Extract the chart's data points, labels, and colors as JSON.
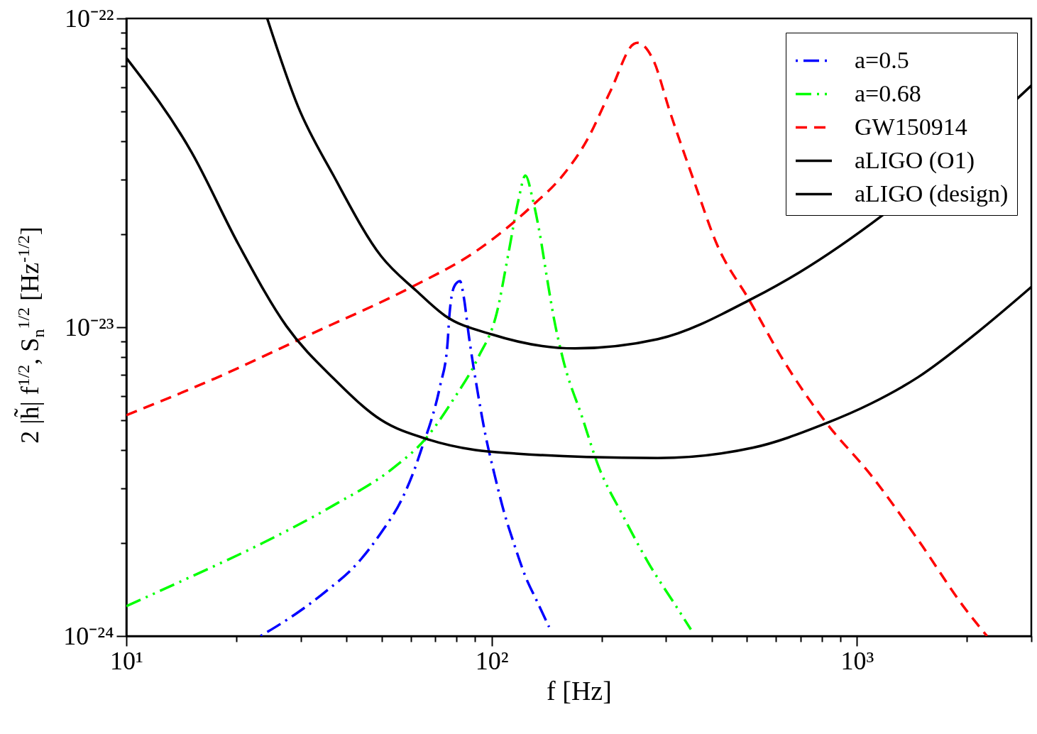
{
  "chart_data": {
    "type": "line",
    "xlabel": "f [Hz]",
    "ylabel": "2 |h̃| f$^{1/2}$, S$_{n}$$^{1/2}$ [Hz$^{-1/2}$]",
    "log": "xy",
    "grid": false,
    "legend": "top right",
    "xlim": [
      10,
      3000
    ],
    "ylim": [
      1e-24,
      1e-22
    ],
    "xticks": [
      {
        "value": 10,
        "label": "10¹"
      },
      {
        "value": 20,
        "label": null
      },
      {
        "value": 30,
        "label": null
      },
      {
        "value": 40,
        "label": null
      },
      {
        "value": 50,
        "label": null
      },
      {
        "value": 60,
        "label": null
      },
      {
        "value": 70,
        "label": null
      },
      {
        "value": 80,
        "label": null
      },
      {
        "value": 90,
        "label": null
      },
      {
        "value": 100,
        "label": "10²"
      },
      {
        "value": 200,
        "label": null
      },
      {
        "value": 300,
        "label": null
      },
      {
        "value": 400,
        "label": null
      },
      {
        "value": 500,
        "label": null
      },
      {
        "value": 600,
        "label": null
      },
      {
        "value": 700,
        "label": null
      },
      {
        "value": 800,
        "label": null
      },
      {
        "value": 900,
        "label": null
      },
      {
        "value": 1000,
        "label": "10³"
      },
      {
        "value": 2000,
        "label": null
      },
      {
        "value": 3000,
        "label": null
      }
    ],
    "yticks": [
      {
        "value": 1e-24,
        "label": "10⁻²⁴"
      },
      {
        "value": 2e-24,
        "label": null
      },
      {
        "value": 3e-24,
        "label": null
      },
      {
        "value": 4e-24,
        "label": null
      },
      {
        "value": 5e-24,
        "label": null
      },
      {
        "value": 6e-24,
        "label": null
      },
      {
        "value": 7e-24,
        "label": null
      },
      {
        "value": 8e-24,
        "label": null
      },
      {
        "value": 9e-24,
        "label": null
      },
      {
        "value": 1e-23,
        "label": "10⁻²³"
      },
      {
        "value": 2e-23,
        "label": null
      },
      {
        "value": 3e-23,
        "label": null
      },
      {
        "value": 4e-23,
        "label": null
      },
      {
        "value": 5e-23,
        "label": null
      },
      {
        "value": 6e-23,
        "label": null
      },
      {
        "value": 7e-23,
        "label": null
      },
      {
        "value": 8e-23,
        "label": null
      },
      {
        "value": 9e-23,
        "label": null
      },
      {
        "value": 1e-22,
        "label": "10⁻²²"
      }
    ],
    "series": [
      {
        "name": "a=0.5",
        "color": "#0000ff",
        "line_style": "dashed",
        "x": [
          23.3,
          29.1,
          35.3,
          42.9,
          49.8,
          56.9,
          61.3,
          65.1,
          68.1,
          72.3,
          75.6,
          76.7,
          79.1,
          81.9,
          83.9,
          86.5,
          91.8,
          96.0,
          101.9,
          108.1,
          114.8,
          123.7,
          133.3,
          143.6
        ],
        "values": [
          1e-24,
          1.18e-24,
          1.4e-24,
          1.72e-24,
          2.16e-24,
          2.79e-24,
          3.43e-24,
          4.22e-24,
          4.93e-24,
          6.48e-24,
          8.68e-24,
          1.11e-23,
          1.36e-23,
          1.41e-23,
          1.25e-23,
          9.47e-24,
          6.05e-24,
          4.52e-24,
          3.32e-24,
          2.52e-24,
          2.01e-24,
          1.56e-24,
          1.29e-24,
          1.07e-24
        ]
      },
      {
        "name": "a=0.68",
        "color": "#00ff00",
        "line_style": "dashed",
        "x": [
          10,
          15.1,
          23.6,
          36.9,
          53.6,
          66.1,
          77.9,
          91.8,
          103.4,
          111.4,
          118.3,
          123.7,
          129.4,
          135.3,
          141.5,
          148,
          157,
          177,
          196,
          228,
          269,
          321,
          351
        ],
        "values": [
          1.25e-24,
          1.56e-24,
          2e-24,
          2.65e-24,
          3.49e-24,
          4.37e-24,
          5.75e-24,
          7.97e-24,
          1.12e-23,
          1.76e-23,
          2.57e-23,
          3.1e-23,
          2.61e-23,
          2.02e-23,
          1.46e-23,
          1.07e-23,
          7.83e-24,
          5.1e-24,
          3.55e-24,
          2.47e-24,
          1.72e-24,
          1.24e-24,
          1.05e-24
        ]
      },
      {
        "name": "GW150914",
        "color": "#ff0000",
        "line_style": "dashed",
        "x": [
          10,
          17.5,
          31.8,
          60.4,
          90.4,
          129.4,
          156.8,
          182,
          212,
          245,
          251,
          277,
          307,
          357,
          414,
          506,
          628,
          821,
          1092,
          1469,
          1983,
          2269
        ],
        "values": [
          5.19e-24,
          6.83e-24,
          9.47e-24,
          1.35e-23,
          1.76e-23,
          2.48e-23,
          3.11e-23,
          4.02e-23,
          5.86e-23,
          8.27e-23,
          8.34e-23,
          7.33e-23,
          5.02e-23,
          3e-23,
          1.85e-23,
          1.23e-23,
          7.83e-24,
          4.93e-24,
          3.32e-24,
          2.05e-24,
          1.22e-24,
          1e-24
        ]
      },
      {
        "name": "aLIGO (O1)",
        "color": "#000000",
        "line_style": "solid",
        "x": [
          24.3,
          29.5,
          36.9,
          49.8,
          62.3,
          74.5,
          100.4,
          169,
          285,
          518,
          698,
          1177,
          3000
        ],
        "values": [
          1e-22,
          5.19e-23,
          3.1e-23,
          1.7e-23,
          1.31e-23,
          1.09e-23,
          9.47e-24,
          8.54e-24,
          9.15e-24,
          1.24e-23,
          1.51e-23,
          2.31e-23,
          6.06e-23
        ]
      },
      {
        "name": "aLIGO (design)",
        "color": "#000000",
        "line_style": "solid",
        "x": [
          10,
          15.1,
          20.3,
          27.4,
          36.9,
          49.8,
          67.1,
          90.4,
          116.5,
          182,
          285,
          518,
          810,
          1092,
          1469,
          2137,
          3000
        ],
        "values": [
          7.45e-23,
          3.68e-23,
          1.85e-23,
          1.01e-23,
          6.83e-24,
          5.01e-24,
          4.33e-24,
          4e-24,
          3.9e-24,
          3.8e-24,
          3.77e-24,
          4.07e-24,
          4.85e-24,
          5.66e-24,
          6.89e-24,
          9.63e-24,
          1.35e-23
        ]
      }
    ]
  }
}
